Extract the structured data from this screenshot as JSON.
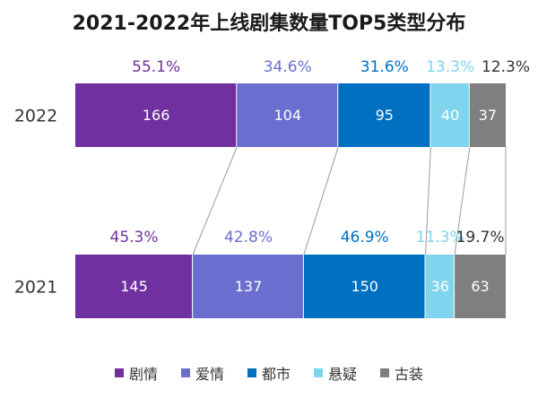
{
  "chart_data": {
    "type": "bar",
    "orientation": "horizontal",
    "stacked": true,
    "title": "2021-2022年上线剧集数量TOP5类型分布",
    "categories": [
      "2022",
      "2021"
    ],
    "series": [
      {
        "name": "剧情",
        "color": "#7030a0",
        "values": [
          166,
          145
        ],
        "percents": [
          "55.1%",
          "45.3%"
        ],
        "pct_color": "#7030a0"
      },
      {
        "name": "爱情",
        "color": "#6a6fcf",
        "values": [
          104,
          137
        ],
        "percents": [
          "34.6%",
          "42.8%"
        ],
        "pct_color": "#6a6fcf"
      },
      {
        "name": "都市",
        "color": "#0070c0",
        "values": [
          95,
          150
        ],
        "percents": [
          "31.6%",
          "46.9%"
        ],
        "pct_color": "#0070c0"
      },
      {
        "name": "悬疑",
        "color": "#7fd4ee",
        "values": [
          40,
          36
        ],
        "percents": [
          "13.3%",
          "11.3%"
        ],
        "pct_color": "#7fd4ee"
      },
      {
        "name": "古装",
        "color": "#7f7f7f",
        "values": [
          37,
          63
        ],
        "percents": [
          "12.3%",
          "19.7%"
        ],
        "pct_color": "#333333"
      }
    ],
    "legend_position": "bottom",
    "connector_lines": true,
    "grid": false
  }
}
